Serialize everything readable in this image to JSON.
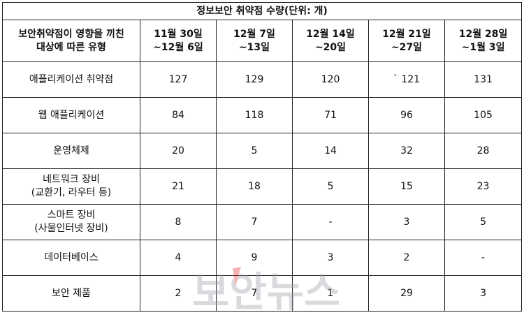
{
  "title": "정보보안 취약점 수량(단위: 개)",
  "header": {
    "category": [
      "보안취약점이 영향을 끼친",
      "대상에 따른 유형"
    ],
    "periods": [
      [
        "11월 30일",
        "~12월 6일"
      ],
      [
        "12월 7일",
        "~13일"
      ],
      [
        "12월 14일",
        "~20일"
      ],
      [
        "12월 21일",
        "~27일"
      ],
      [
        "12월 28일",
        "~1월 3일"
      ]
    ]
  },
  "rows": [
    {
      "label": [
        "애플리케이션 취약점"
      ],
      "values": [
        "127",
        "129",
        "120",
        "`  121",
        "131"
      ]
    },
    {
      "label": [
        "웹 애플리케이션"
      ],
      "values": [
        "84",
        "118",
        "71",
        "96",
        "105"
      ]
    },
    {
      "label": [
        "운영체제"
      ],
      "values": [
        "20",
        "5",
        "14",
        "32",
        "28"
      ]
    },
    {
      "label": [
        "네트워크 장비",
        "(교환기, 라우터 등)"
      ],
      "values": [
        "21",
        "18",
        "5",
        "15",
        "23"
      ]
    },
    {
      "label": [
        "스마트 장비",
        "(사물인터넷 장비)"
      ],
      "values": [
        "8",
        "7",
        "-",
        "3",
        "5"
      ]
    },
    {
      "label": [
        "데이터베이스"
      ],
      "values": [
        "4",
        "9",
        "3",
        "2",
        "-"
      ]
    },
    {
      "label": [
        "보안 제품"
      ],
      "values": [
        "2",
        "7",
        "1",
        "29",
        "3"
      ]
    }
  ],
  "watermark": {
    "text": "보안뉴스",
    "accent_color": "#e0393a"
  }
}
